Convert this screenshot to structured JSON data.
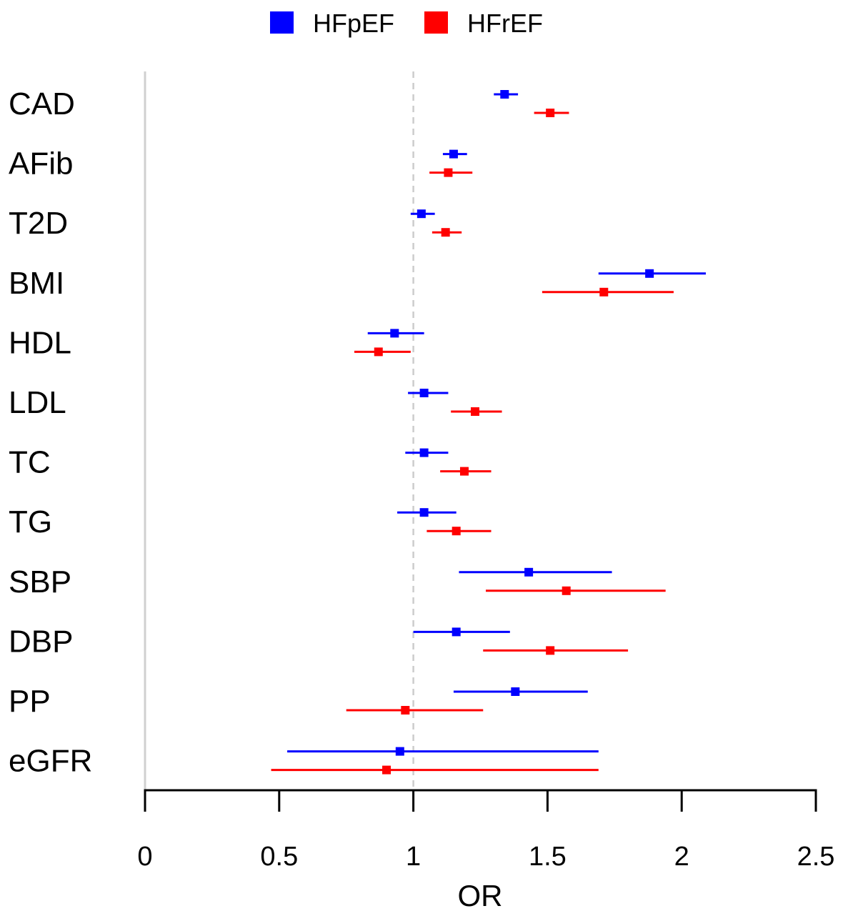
{
  "chart_data": {
    "type": "forest",
    "xlabel": "OR",
    "xlim": [
      0,
      2.5
    ],
    "xticks": [
      0,
      0.5,
      1,
      1.5,
      2,
      2.5
    ],
    "tick_labels": [
      "0",
      "0.5",
      "1",
      "1.5",
      "2",
      "2.5"
    ],
    "reference_line": 1,
    "legend_position": "top-center",
    "categories": [
      "CAD",
      "AFib",
      "T2D",
      "BMI",
      "HDL",
      "LDL",
      "TC",
      "TG",
      "SBP",
      "DBP",
      "PP",
      "eGFR"
    ],
    "series": [
      {
        "name": "HFpEF",
        "color": "#0000ff",
        "or": [
          1.34,
          1.15,
          1.03,
          1.88,
          0.93,
          1.04,
          1.04,
          1.04,
          1.43,
          1.16,
          1.38,
          0.95
        ],
        "lower": [
          1.3,
          1.11,
          0.99,
          1.69,
          0.83,
          0.98,
          0.97,
          0.94,
          1.17,
          1.0,
          1.15,
          0.53
        ],
        "upper": [
          1.39,
          1.2,
          1.08,
          2.09,
          1.04,
          1.13,
          1.13,
          1.16,
          1.74,
          1.36,
          1.65,
          1.69
        ]
      },
      {
        "name": "HFrEF",
        "color": "#ff0000",
        "or": [
          1.51,
          1.13,
          1.12,
          1.71,
          0.87,
          1.23,
          1.19,
          1.16,
          1.57,
          1.51,
          0.97,
          0.9
        ],
        "lower": [
          1.45,
          1.06,
          1.07,
          1.48,
          0.78,
          1.14,
          1.1,
          1.05,
          1.27,
          1.26,
          0.75,
          0.47
        ],
        "upper": [
          1.58,
          1.22,
          1.18,
          1.97,
          0.99,
          1.33,
          1.29,
          1.29,
          1.94,
          1.8,
          1.26,
          1.69
        ]
      }
    ]
  }
}
